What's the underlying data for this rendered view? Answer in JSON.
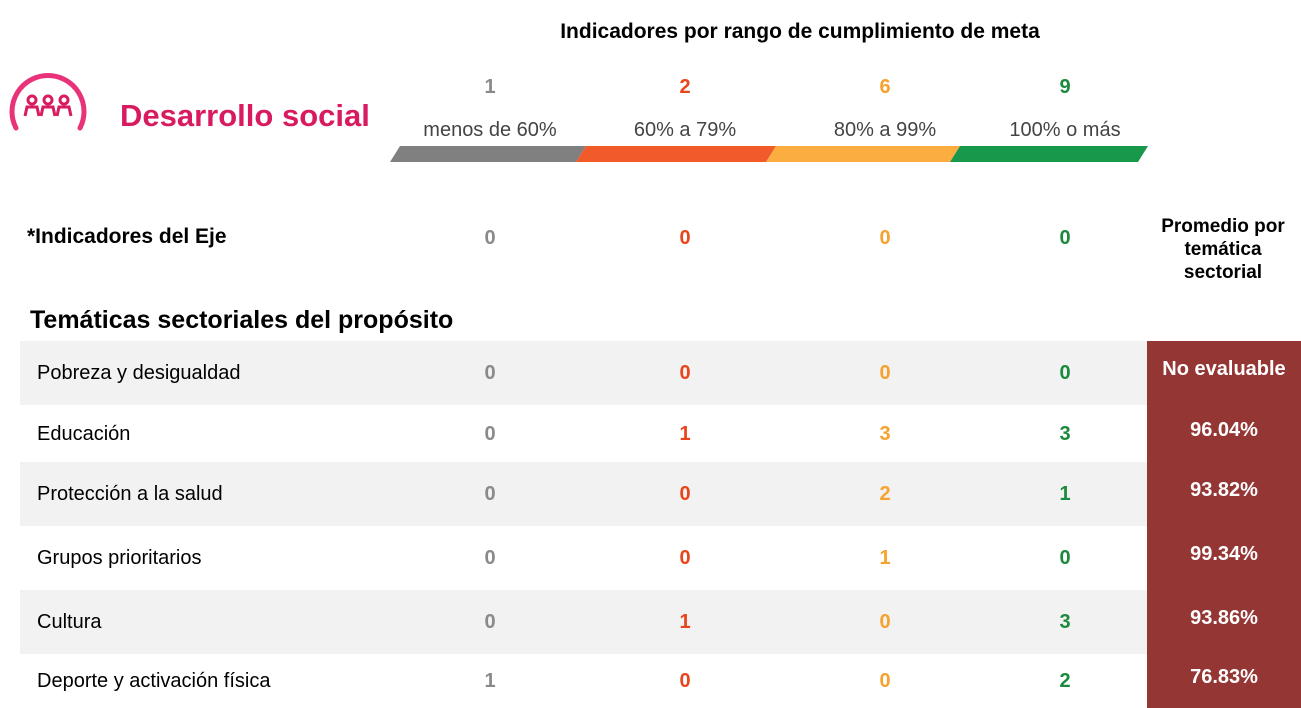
{
  "header": {
    "title": "Indicadores por rango de cumplimiento de meta",
    "axis": "Desarrollo social"
  },
  "ranges": [
    {
      "count": 1,
      "label": "menos de 60%"
    },
    {
      "count": 2,
      "label": "60% a 79%"
    },
    {
      "count": 6,
      "label": "80% a 99%"
    },
    {
      "count": 9,
      "label": "100% o más"
    }
  ],
  "eje": {
    "label": "*Indicadores del Eje",
    "values": [
      0,
      0,
      0,
      0
    ]
  },
  "average_header": "Promedio por temática sectorial",
  "section_title": "Temáticas sectoriales del propósito",
  "table": {
    "rows": [
      [
        "Pobreza y desigualdad",
        0,
        0,
        0,
        0,
        "No evaluable"
      ],
      [
        "Educación",
        0,
        1,
        3,
        3,
        "96.04%"
      ],
      [
        "Protección a la salud",
        0,
        0,
        2,
        1,
        "93.82%"
      ],
      [
        "Grupos prioritarios",
        0,
        0,
        1,
        0,
        "99.34%"
      ],
      [
        "Cultura",
        0,
        1,
        0,
        3,
        "93.86%"
      ],
      [
        "Deporte y activación física",
        1,
        0,
        0,
        2,
        "76.83%"
      ]
    ]
  }
}
